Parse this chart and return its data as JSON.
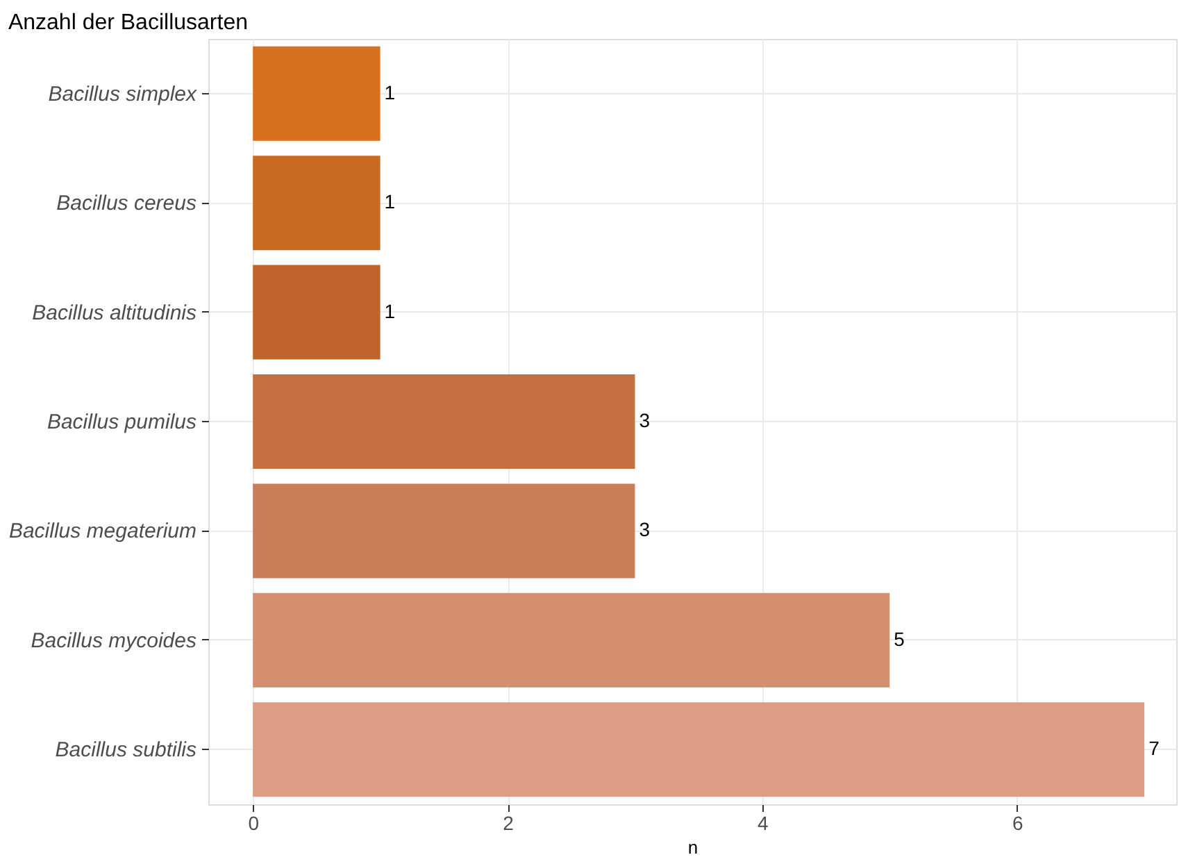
{
  "chart_data": {
    "type": "bar",
    "orientation": "horizontal",
    "title": "Anzahl der Bacillusarten",
    "xlabel": "n",
    "categories": [
      "Bacillus simplex",
      "Bacillus cereus",
      "Bacillus altitudinis",
      "Bacillus pumilus",
      "Bacillus megaterium",
      "Bacillus mycoides",
      "Bacillus subtilis"
    ],
    "values": [
      1,
      1,
      1,
      3,
      3,
      5,
      7
    ],
    "colors": [
      "#d9701e",
      "#c96a22",
      "#bf652b",
      "#c47040",
      "#c97d58",
      "#d48f6e",
      "#dc9d84"
    ],
    "xlim": [
      -0.35,
      7.25
    ],
    "xticks": [
      0,
      2,
      4,
      6
    ],
    "grid": true,
    "data_labels": true
  }
}
